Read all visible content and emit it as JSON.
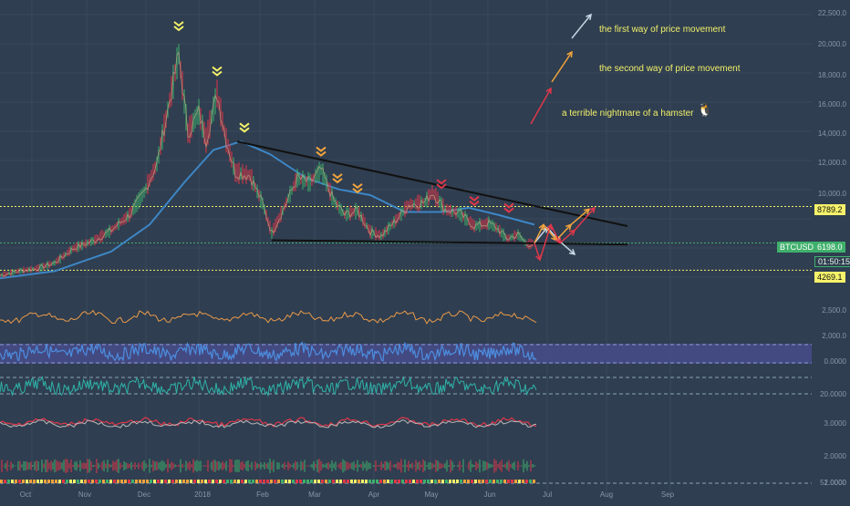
{
  "chart_data": {
    "type": "line",
    "symbol": "BTCUSD",
    "price_axis_ticks": [
      "22,500.0",
      "20,000.0",
      "18,000.0",
      "16,000.0",
      "14,000.0",
      "12,000.0",
      "10,000.0",
      "2,500.0",
      "2,000.0",
      "0.0000",
      "20.0000",
      "3.0000",
      "2.0000",
      "52.0000",
      "1.0000"
    ],
    "time_axis_ticks": [
      "Oct",
      "Nov",
      "Dec",
      "2018",
      "Feb",
      "Mar",
      "Apr",
      "May",
      "Jun",
      "Jul",
      "Aug",
      "Sep"
    ],
    "levels": [
      {
        "label": "8789.2",
        "value": 8789.2,
        "color": "#f6f26a"
      },
      {
        "label": "6198.0",
        "value": 6198.0,
        "color": "#3fb06c"
      },
      {
        "label": "4269.1",
        "value": 4269.1,
        "color": "#f6f26a"
      }
    ],
    "last_price": "6198.0",
    "countdown": "01:50:15",
    "price_path": [
      [
        "2017-09-10",
        3900
      ],
      [
        "2017-09-20",
        4200
      ],
      [
        "2017-10-01",
        4400
      ],
      [
        "2017-10-10",
        4800
      ],
      [
        "2017-10-20",
        5800
      ],
      [
        "2017-11-01",
        6400
      ],
      [
        "2017-11-10",
        7100
      ],
      [
        "2017-11-20",
        8200
      ],
      [
        "2017-11-28",
        9800
      ],
      [
        "2017-12-05",
        11800
      ],
      [
        "2017-12-10",
        15000
      ],
      [
        "2017-12-17",
        19600
      ],
      [
        "2017-12-22",
        14000
      ],
      [
        "2017-12-28",
        15500
      ],
      [
        "2018-01-01",
        13500
      ],
      [
        "2018-01-07",
        16800
      ],
      [
        "2018-01-12",
        13500
      ],
      [
        "2018-01-17",
        11200
      ],
      [
        "2018-01-25",
        11000
      ],
      [
        "2018-02-01",
        9000
      ],
      [
        "2018-02-06",
        6900
      ],
      [
        "2018-02-12",
        8500
      ],
      [
        "2018-02-20",
        10800
      ],
      [
        "2018-02-27",
        10500
      ],
      [
        "2018-03-05",
        11400
      ],
      [
        "2018-03-12",
        9200
      ],
      [
        "2018-03-18",
        8200
      ],
      [
        "2018-03-25",
        8500
      ],
      [
        "2018-04-01",
        7000
      ],
      [
        "2018-04-07",
        6700
      ],
      [
        "2018-04-15",
        7800
      ],
      [
        "2018-04-22",
        8900
      ],
      [
        "2018-05-01",
        9100
      ],
      [
        "2018-05-05",
        9800
      ],
      [
        "2018-05-12",
        8600
      ],
      [
        "2018-05-20",
        8300
      ],
      [
        "2018-05-28",
        7400
      ],
      [
        "2018-06-05",
        7600
      ],
      [
        "2018-06-10",
        7200
      ],
      [
        "2018-06-15",
        6500
      ],
      [
        "2018-06-21",
        6800
      ],
      [
        "2018-06-26",
        6100
      ],
      [
        "2018-06-30",
        6198
      ]
    ],
    "moving_average": [
      [
        "2017-09-10",
        3700
      ],
      [
        "2017-10-10",
        4200
      ],
      [
        "2017-11-10",
        5600
      ],
      [
        "2017-12-01",
        7500
      ],
      [
        "2017-12-20",
        10500
      ],
      [
        "2018-01-05",
        12800
      ],
      [
        "2018-01-20",
        13400
      ],
      [
        "2018-02-05",
        12500
      ],
      [
        "2018-02-25",
        10800
      ],
      [
        "2018-03-15",
        10000
      ],
      [
        "2018-04-01",
        9600
      ],
      [
        "2018-04-20",
        8400
      ],
      [
        "2018-05-10",
        8400
      ],
      [
        "2018-05-25",
        8700
      ],
      [
        "2018-06-10",
        8200
      ],
      [
        "2018-06-30",
        7500
      ]
    ],
    "trendlines": [
      {
        "name": "resistance",
        "from": [
          "2018-01-18",
          13400
        ],
        "to": [
          "2018-08-20",
          7400
        ],
        "color": "#111111"
      },
      {
        "name": "support",
        "from": [
          "2018-02-06",
          6400
        ],
        "to": [
          "2018-08-20",
          6100
        ],
        "color": "#111111"
      }
    ],
    "markers": [
      {
        "date": "2017-12-17",
        "price": 21500,
        "color": "#f6f26a"
      },
      {
        "date": "2018-01-07",
        "price": 18300,
        "color": "#f6f26a"
      },
      {
        "date": "2018-01-22",
        "price": 14300,
        "color": "#f6f26a"
      },
      {
        "date": "2018-03-05",
        "price": 12600,
        "color": "#f2a33c"
      },
      {
        "date": "2018-03-14",
        "price": 10700,
        "color": "#f2a33c"
      },
      {
        "date": "2018-03-25",
        "price": 10000,
        "color": "#f2a33c"
      },
      {
        "date": "2018-05-10",
        "price": 10300,
        "color": "#e0374a"
      },
      {
        "date": "2018-05-28",
        "price": 9100,
        "color": "#e0374a"
      },
      {
        "date": "2018-06-16",
        "price": 8600,
        "color": "#e0374a"
      }
    ],
    "scenarios": [
      {
        "name": "first",
        "color": "#c8d6e6",
        "points": [
          [
            "2018-06-30",
            6198
          ],
          [
            "2018-07-07",
            7300
          ],
          [
            "2018-07-14",
            6300
          ],
          [
            "2018-07-22",
            5400
          ]
        ]
      },
      {
        "name": "second",
        "color": "#f2a33c",
        "points": [
          [
            "2018-06-30",
            6198
          ],
          [
            "2018-07-05",
            7500
          ],
          [
            "2018-07-12",
            6400
          ],
          [
            "2018-07-20",
            7500
          ],
          [
            "2018-07-30",
            8600
          ]
        ]
      },
      {
        "name": "nightmare",
        "color": "#e0374a",
        "points": [
          [
            "2018-06-30",
            6198
          ],
          [
            "2018-07-03",
            5000
          ],
          [
            "2018-07-09",
            7500
          ],
          [
            "2018-07-14",
            6200
          ],
          [
            "2018-07-22",
            7100
          ],
          [
            "2018-08-02",
            8700
          ]
        ]
      }
    ],
    "legend": [
      {
        "text": "the first way of price movement",
        "color": "#c8d6e6"
      },
      {
        "text": "the second way of price movement",
        "color": "#f2a33c"
      },
      {
        "text": "a terrible nightmare of a hamster",
        "color": "#e0374a"
      }
    ]
  }
}
